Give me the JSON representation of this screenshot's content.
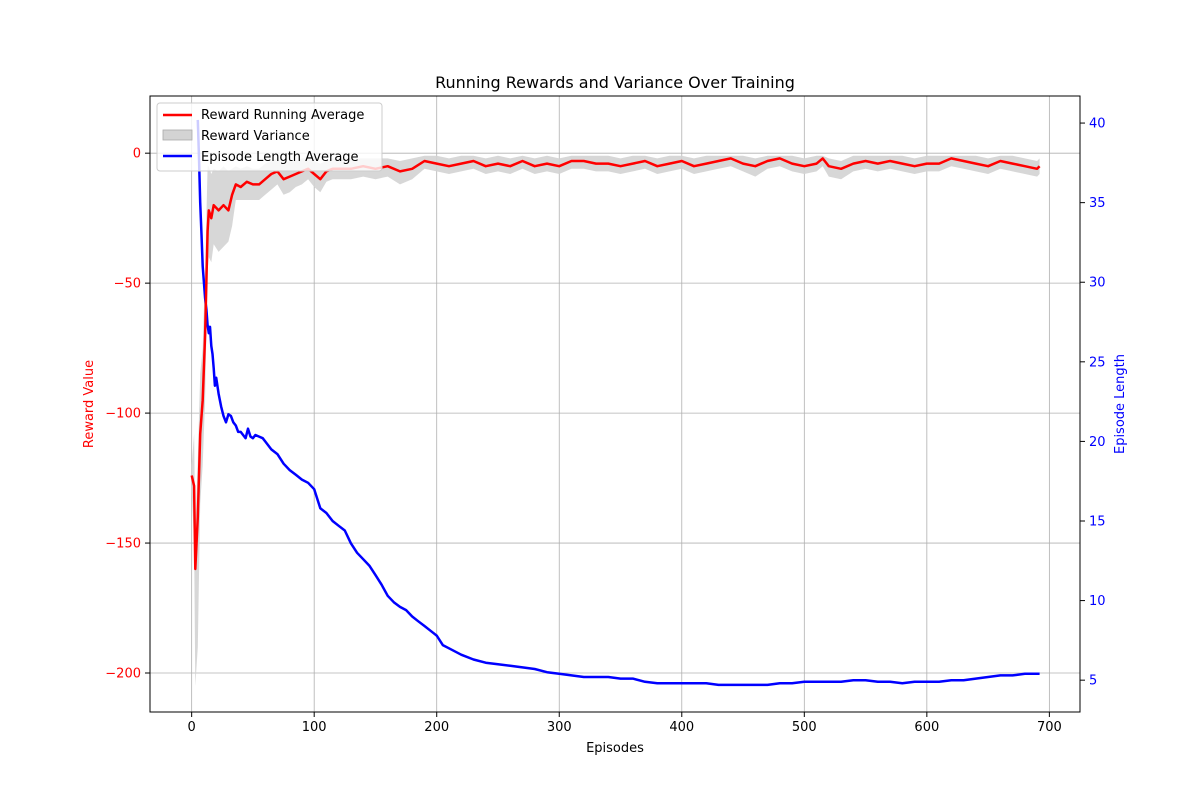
{
  "chart_data": {
    "type": "line",
    "title": "Running Rewards and Variance Over Training",
    "xlabel": "Episodes",
    "ylabel_left": "Reward Value",
    "ylabel_right": "Episode Length",
    "xlim": [
      -34,
      725
    ],
    "ylim_left": [
      -215,
      22
    ],
    "ylim_right": [
      3,
      41.7
    ],
    "x_ticks": [
      0,
      100,
      200,
      300,
      400,
      500,
      600,
      700
    ],
    "y_left_ticks": [
      0,
      -50,
      -100,
      -150,
      -200
    ],
    "y_right_ticks": [
      5,
      10,
      15,
      20,
      25,
      30,
      35,
      40
    ],
    "grid": true,
    "legend_position": "top-left",
    "colors": {
      "reward": "#ff0000",
      "variance": "#d3d3d3",
      "length": "#0000ff",
      "left_axis_text": "#ff0000",
      "right_axis_text": "#0000ff"
    },
    "series": [
      {
        "name": "Reward Running Average",
        "axis": "left",
        "points": [
          [
            0,
            -124
          ],
          [
            2,
            -128
          ],
          [
            3,
            -160
          ],
          [
            5,
            -140
          ],
          [
            7,
            -108
          ],
          [
            9,
            -95
          ],
          [
            11,
            -70
          ],
          [
            13,
            -30
          ],
          [
            14,
            -22
          ],
          [
            16,
            -25
          ],
          [
            18,
            -20
          ],
          [
            22,
            -22
          ],
          [
            26,
            -20
          ],
          [
            30,
            -22
          ],
          [
            33,
            -16
          ],
          [
            36,
            -12
          ],
          [
            40,
            -13
          ],
          [
            45,
            -11
          ],
          [
            50,
            -12
          ],
          [
            55,
            -12
          ],
          [
            60,
            -10
          ],
          [
            65,
            -8
          ],
          [
            70,
            -7
          ],
          [
            75,
            -10
          ],
          [
            80,
            -9
          ],
          [
            85,
            -8
          ],
          [
            90,
            -7
          ],
          [
            95,
            -6
          ],
          [
            100,
            -8
          ],
          [
            105,
            -10
          ],
          [
            110,
            -7
          ],
          [
            115,
            -6
          ],
          [
            120,
            -6
          ],
          [
            130,
            -6
          ],
          [
            140,
            -5
          ],
          [
            150,
            -6
          ],
          [
            160,
            -5
          ],
          [
            170,
            -7
          ],
          [
            180,
            -6
          ],
          [
            190,
            -3
          ],
          [
            200,
            -4
          ],
          [
            210,
            -5
          ],
          [
            220,
            -4
          ],
          [
            230,
            -3
          ],
          [
            240,
            -5
          ],
          [
            250,
            -4
          ],
          [
            260,
            -5
          ],
          [
            270,
            -3
          ],
          [
            280,
            -5
          ],
          [
            290,
            -4
          ],
          [
            300,
            -5
          ],
          [
            310,
            -3
          ],
          [
            320,
            -3
          ],
          [
            330,
            -4
          ],
          [
            340,
            -4
          ],
          [
            350,
            -5
          ],
          [
            360,
            -4
          ],
          [
            370,
            -3
          ],
          [
            380,
            -5
          ],
          [
            390,
            -4
          ],
          [
            400,
            -3
          ],
          [
            410,
            -5
          ],
          [
            420,
            -4
          ],
          [
            430,
            -3
          ],
          [
            440,
            -2
          ],
          [
            450,
            -4
          ],
          [
            460,
            -5
          ],
          [
            470,
            -3
          ],
          [
            480,
            -2
          ],
          [
            490,
            -4
          ],
          [
            500,
            -5
          ],
          [
            510,
            -4
          ],
          [
            515,
            -2
          ],
          [
            520,
            -5
          ],
          [
            530,
            -6
          ],
          [
            540,
            -4
          ],
          [
            550,
            -3
          ],
          [
            560,
            -4
          ],
          [
            570,
            -3
          ],
          [
            580,
            -4
          ],
          [
            590,
            -5
          ],
          [
            600,
            -4
          ],
          [
            610,
            -4
          ],
          [
            620,
            -2
          ],
          [
            630,
            -3
          ],
          [
            640,
            -4
          ],
          [
            650,
            -5
          ],
          [
            660,
            -3
          ],
          [
            670,
            -4
          ],
          [
            680,
            -5
          ],
          [
            690,
            -6
          ],
          [
            692,
            -5
          ]
        ]
      },
      {
        "name": "Reward Variance",
        "axis": "left",
        "band": [
          [
            0,
            -120,
            -130
          ],
          [
            2,
            -108,
            -150
          ],
          [
            3,
            -145,
            -205
          ],
          [
            5,
            -118,
            -190
          ],
          [
            7,
            -85,
            -135
          ],
          [
            9,
            -75,
            -120
          ],
          [
            11,
            -45,
            -95
          ],
          [
            13,
            -5,
            -45
          ],
          [
            14,
            -5,
            -40
          ],
          [
            16,
            -8,
            -42
          ],
          [
            18,
            -6,
            -35
          ],
          [
            22,
            -7,
            -38
          ],
          [
            26,
            -5,
            -36
          ],
          [
            30,
            -7,
            -34
          ],
          [
            33,
            -6,
            -28
          ],
          [
            36,
            -5,
            -18
          ],
          [
            40,
            -6,
            -18
          ],
          [
            45,
            -5,
            -18
          ],
          [
            50,
            -6,
            -18
          ],
          [
            55,
            -6,
            -18
          ],
          [
            60,
            -4,
            -16
          ],
          [
            65,
            -3,
            -14
          ],
          [
            70,
            -2,
            -12
          ],
          [
            75,
            -4,
            -16
          ],
          [
            80,
            -3,
            -15
          ],
          [
            85,
            -3,
            -13
          ],
          [
            90,
            -2,
            -12
          ],
          [
            95,
            -2,
            -10
          ],
          [
            100,
            -3,
            -13
          ],
          [
            105,
            -4,
            -15
          ],
          [
            110,
            -3,
            -11
          ],
          [
            115,
            -2,
            -10
          ],
          [
            120,
            -2,
            -10
          ],
          [
            130,
            -2,
            -10
          ],
          [
            140,
            -2,
            -9
          ],
          [
            150,
            -2,
            -10
          ],
          [
            160,
            -2,
            -9
          ],
          [
            170,
            -3,
            -12
          ],
          [
            180,
            -2,
            -10
          ],
          [
            190,
            -1,
            -6
          ],
          [
            200,
            -1,
            -7
          ],
          [
            210,
            -2,
            -8
          ],
          [
            220,
            -1,
            -7
          ],
          [
            230,
            -1,
            -6
          ],
          [
            240,
            -2,
            -8
          ],
          [
            250,
            -1,
            -7
          ],
          [
            260,
            -2,
            -8
          ],
          [
            270,
            -1,
            -6
          ],
          [
            280,
            -2,
            -8
          ],
          [
            290,
            -1,
            -7
          ],
          [
            300,
            -2,
            -8
          ],
          [
            310,
            -1,
            -6
          ],
          [
            320,
            -1,
            -6
          ],
          [
            330,
            -1,
            -7
          ],
          [
            340,
            -1,
            -7
          ],
          [
            350,
            -2,
            -8
          ],
          [
            360,
            -1,
            -7
          ],
          [
            370,
            -1,
            -6
          ],
          [
            380,
            -2,
            -8
          ],
          [
            390,
            -1,
            -7
          ],
          [
            400,
            -1,
            -6
          ],
          [
            410,
            -2,
            -8
          ],
          [
            420,
            -1,
            -7
          ],
          [
            430,
            -1,
            -6
          ],
          [
            440,
            -1,
            -5
          ],
          [
            450,
            -1,
            -7
          ],
          [
            460,
            -2,
            -9
          ],
          [
            470,
            -1,
            -6
          ],
          [
            480,
            -1,
            -5
          ],
          [
            490,
            -1,
            -7
          ],
          [
            500,
            -2,
            -8
          ],
          [
            510,
            -1,
            -7
          ],
          [
            515,
            -1,
            -5
          ],
          [
            520,
            -2,
            -9
          ],
          [
            530,
            -3,
            -10
          ],
          [
            540,
            -1,
            -7
          ],
          [
            550,
            -1,
            -6
          ],
          [
            560,
            -1,
            -7
          ],
          [
            570,
            -1,
            -6
          ],
          [
            580,
            -1,
            -7
          ],
          [
            590,
            -2,
            -8
          ],
          [
            600,
            -1,
            -7
          ],
          [
            610,
            -1,
            -7
          ],
          [
            620,
            -1,
            -5
          ],
          [
            630,
            -1,
            -6
          ],
          [
            640,
            -1,
            -7
          ],
          [
            650,
            -2,
            -8
          ],
          [
            660,
            -1,
            -6
          ],
          [
            670,
            -1,
            -7
          ],
          [
            680,
            -2,
            -8
          ],
          [
            690,
            -3,
            -9
          ],
          [
            692,
            -2,
            -8
          ]
        ]
      },
      {
        "name": "Episode Length Average",
        "axis": "right",
        "points": [
          [
            5,
            40.2
          ],
          [
            6,
            37.8
          ],
          [
            7,
            35
          ],
          [
            8,
            33
          ],
          [
            9,
            31
          ],
          [
            10,
            30
          ],
          [
            11,
            29
          ],
          [
            12,
            28.3
          ],
          [
            13,
            27.3
          ],
          [
            14,
            26.8
          ],
          [
            15,
            27.2
          ],
          [
            16,
            26
          ],
          [
            17,
            25.5
          ],
          [
            18,
            24.6
          ],
          [
            19,
            23.5
          ],
          [
            20,
            24
          ],
          [
            22,
            23
          ],
          [
            24,
            22.2
          ],
          [
            26,
            21.6
          ],
          [
            28,
            21.2
          ],
          [
            30,
            21.7
          ],
          [
            32,
            21.6
          ],
          [
            34,
            21.2
          ],
          [
            36,
            21
          ],
          [
            38,
            20.6
          ],
          [
            40,
            20.6
          ],
          [
            42,
            20.4
          ],
          [
            44,
            20.2
          ],
          [
            46,
            20.8
          ],
          [
            48,
            20.3
          ],
          [
            50,
            20.2
          ],
          [
            52,
            20.4
          ],
          [
            55,
            20.3
          ],
          [
            58,
            20.2
          ],
          [
            60,
            20
          ],
          [
            65,
            19.5
          ],
          [
            70,
            19.2
          ],
          [
            75,
            18.6
          ],
          [
            80,
            18.2
          ],
          [
            85,
            17.9
          ],
          [
            90,
            17.6
          ],
          [
            95,
            17.4
          ],
          [
            100,
            17
          ],
          [
            105,
            15.8
          ],
          [
            110,
            15.5
          ],
          [
            115,
            15
          ],
          [
            120,
            14.7
          ],
          [
            125,
            14.4
          ],
          [
            130,
            13.6
          ],
          [
            135,
            13
          ],
          [
            140,
            12.6
          ],
          [
            145,
            12.2
          ],
          [
            150,
            11.6
          ],
          [
            155,
            11
          ],
          [
            160,
            10.3
          ],
          [
            165,
            9.9
          ],
          [
            170,
            9.6
          ],
          [
            175,
            9.4
          ],
          [
            180,
            9
          ],
          [
            185,
            8.7
          ],
          [
            190,
            8.4
          ],
          [
            195,
            8.1
          ],
          [
            200,
            7.8
          ],
          [
            205,
            7.2
          ],
          [
            210,
            7
          ],
          [
            220,
            6.6
          ],
          [
            230,
            6.3
          ],
          [
            240,
            6.1
          ],
          [
            250,
            6
          ],
          [
            260,
            5.9
          ],
          [
            270,
            5.8
          ],
          [
            280,
            5.7
          ],
          [
            290,
            5.5
          ],
          [
            300,
            5.4
          ],
          [
            310,
            5.3
          ],
          [
            320,
            5.2
          ],
          [
            330,
            5.2
          ],
          [
            340,
            5.2
          ],
          [
            350,
            5.1
          ],
          [
            360,
            5.1
          ],
          [
            370,
            4.9
          ],
          [
            380,
            4.8
          ],
          [
            390,
            4.8
          ],
          [
            400,
            4.8
          ],
          [
            410,
            4.8
          ],
          [
            420,
            4.8
          ],
          [
            430,
            4.7
          ],
          [
            440,
            4.7
          ],
          [
            450,
            4.7
          ],
          [
            460,
            4.7
          ],
          [
            470,
            4.7
          ],
          [
            480,
            4.8
          ],
          [
            490,
            4.8
          ],
          [
            500,
            4.9
          ],
          [
            510,
            4.9
          ],
          [
            520,
            4.9
          ],
          [
            530,
            4.9
          ],
          [
            540,
            5
          ],
          [
            550,
            5
          ],
          [
            560,
            4.9
          ],
          [
            570,
            4.9
          ],
          [
            580,
            4.8
          ],
          [
            590,
            4.9
          ],
          [
            600,
            4.9
          ],
          [
            610,
            4.9
          ],
          [
            620,
            5
          ],
          [
            630,
            5
          ],
          [
            640,
            5.1
          ],
          [
            650,
            5.2
          ],
          [
            660,
            5.3
          ],
          [
            670,
            5.3
          ],
          [
            680,
            5.4
          ],
          [
            690,
            5.4
          ],
          [
            692,
            5.4
          ]
        ]
      }
    ]
  }
}
